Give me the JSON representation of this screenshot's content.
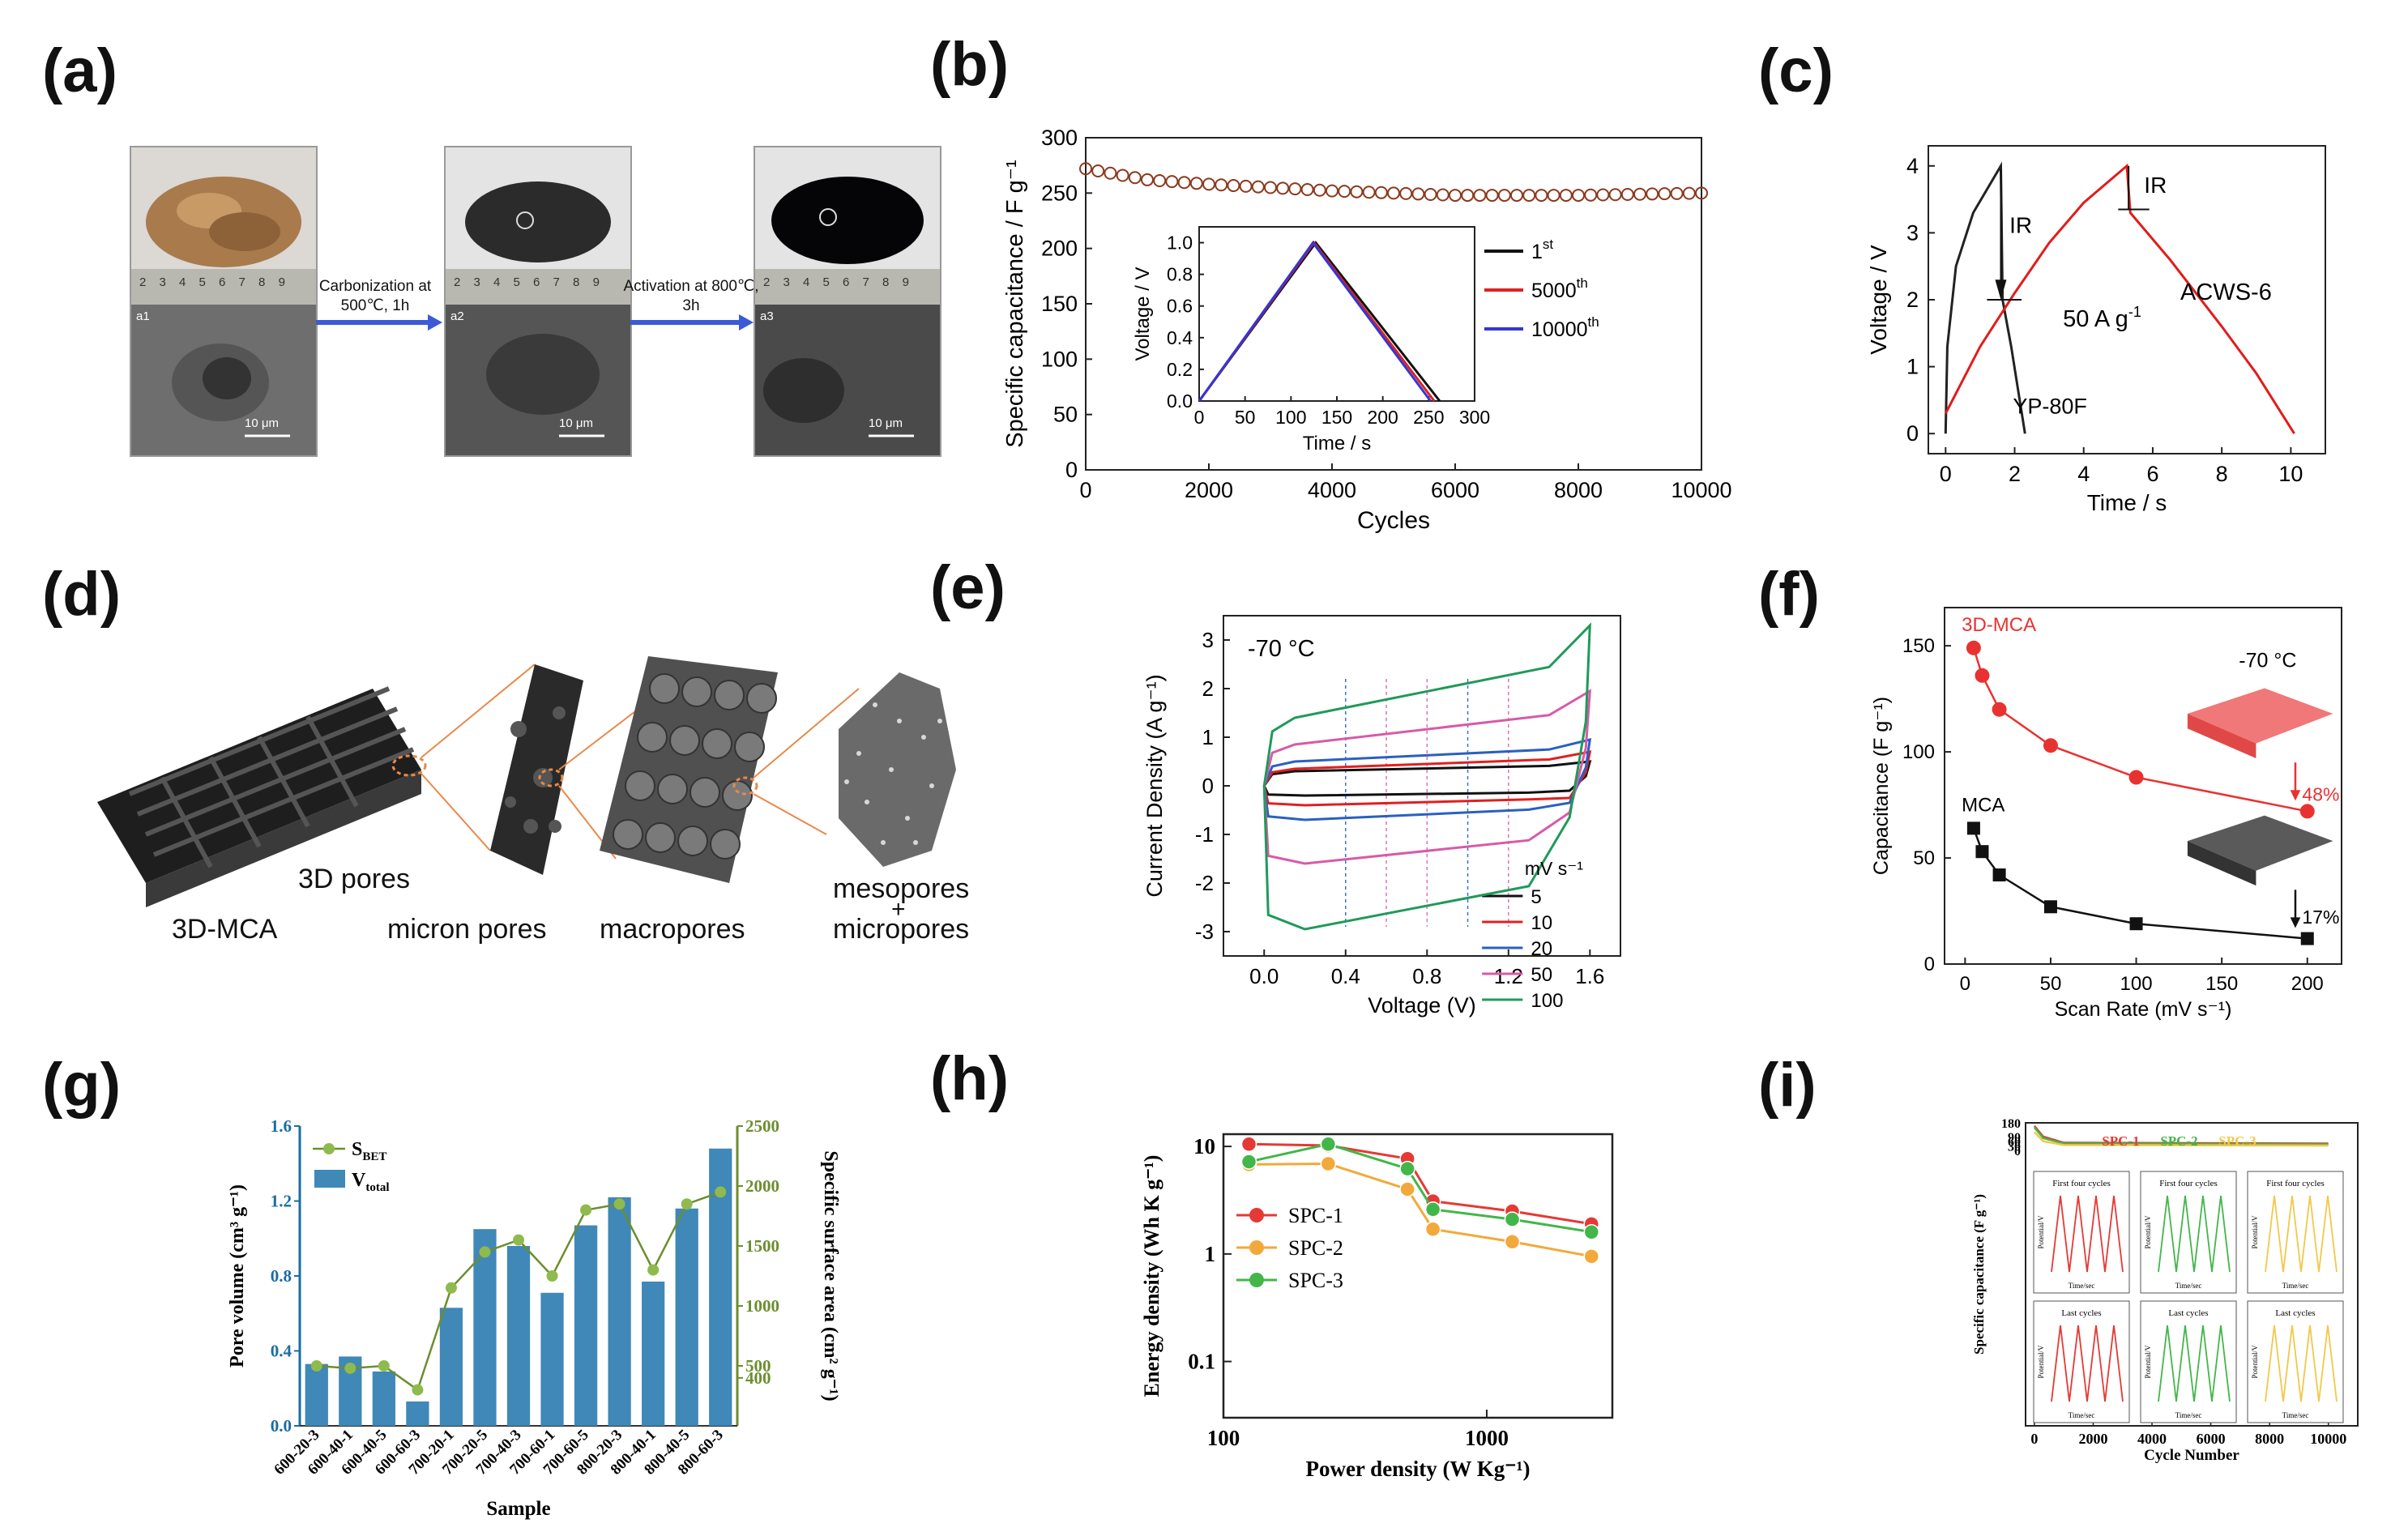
{
  "panels": {
    "a": "(a)",
    "b": "(b)",
    "c": "(c)",
    "d": "(d)",
    "e": "(e)",
    "f": "(f)",
    "g": "(g)",
    "h": "(h)",
    "i": "(i)"
  },
  "panel_a": {
    "step1": "Carbonization at 500℃, 1h",
    "step2": "Activation at 800℃, 3h",
    "scale": "10 μm",
    "sublabels": [
      "a1",
      "a2",
      "a3"
    ],
    "ruler": "2 3 4 5 6 7 8 9"
  },
  "panel_d": {
    "labels": {
      "mca": "3D-MCA",
      "pores3d": "3D pores",
      "micron": "micron pores",
      "macro": "macropores",
      "meso": "mesopores",
      "plus": "+",
      "micro": "micropores"
    },
    "colors": {
      "dark": "#2a2a2a",
      "accent": "#e8894a"
    }
  },
  "chart_data": [
    {
      "id": "b",
      "type": "scatter",
      "title": "",
      "xlabel": "Cycles",
      "ylabel": "Specific capacitance / F g⁻¹",
      "xlim": [
        0,
        10000
      ],
      "ylim": [
        0,
        300
      ],
      "xticks": [
        "0",
        "2000",
        "4000",
        "6000",
        "8000",
        "10000"
      ],
      "yticks": [
        "0",
        "50",
        "100",
        "150",
        "200",
        "250",
        "300"
      ],
      "series": [
        {
          "name": "capacitance",
          "color": "#8b3a1e",
          "x_start": 0,
          "x_end": 10000,
          "x_step": 200,
          "anchors": [
            [
              0,
              272
            ],
            [
              1000,
              262
            ],
            [
              2000,
              258
            ],
            [
              4000,
              252
            ],
            [
              6000,
              248
            ],
            [
              8000,
              248
            ],
            [
              10000,
              250
            ]
          ]
        }
      ],
      "inset": {
        "type": "line",
        "xlabel": "Time / s",
        "ylabel": "Voltage / V",
        "xlim": [
          0,
          300
        ],
        "ylim": [
          0,
          1.1
        ],
        "xticks": [
          "0",
          "50",
          "100",
          "150",
          "200",
          "250",
          "300"
        ],
        "yticks": [
          "0.0",
          "0.2",
          "0.4",
          "0.6",
          "0.8",
          "1.0"
        ],
        "series": [
          {
            "name": "1",
            "sup": "st",
            "color": "#111111",
            "points": [
              [
                0,
                0
              ],
              [
                127,
                1.0
              ],
              [
                262,
                0
              ]
            ]
          },
          {
            "name": "5000",
            "sup": "th",
            "color": "#e02020",
            "points": [
              [
                0,
                0
              ],
              [
                125,
                1.0
              ],
              [
                256,
                0
              ]
            ]
          },
          {
            "name": "10000",
            "sup": "th",
            "color": "#3535d8",
            "points": [
              [
                0,
                0
              ],
              [
                124,
                1.0
              ],
              [
                252,
                0
              ]
            ]
          }
        ]
      }
    },
    {
      "id": "c",
      "type": "line",
      "xlabel": "Time / s",
      "ylabel": "Voltage / V",
      "xlim": [
        -0.5,
        11
      ],
      "ylim": [
        -0.3,
        4.3
      ],
      "xticks": [
        "0",
        "2",
        "4",
        "6",
        "8",
        "10"
      ],
      "yticks": [
        "0",
        "1",
        "2",
        "3",
        "4"
      ],
      "annotations": {
        "ir1": "IR",
        "ir2": "IR",
        "rate": "50 A g",
        "rate_sup": "-1",
        "acws": "ACWS-6",
        "yp": "YP-80F"
      },
      "series": [
        {
          "name": "YP-80F",
          "color": "#222222",
          "points": [
            [
              0,
              0
            ],
            [
              0.05,
              1.3
            ],
            [
              0.3,
              2.5
            ],
            [
              0.8,
              3.3
            ],
            [
              1.6,
              4.0
            ],
            [
              1.65,
              2.0
            ],
            [
              1.9,
              1.3
            ],
            [
              2.3,
              0
            ]
          ]
        },
        {
          "name": "ACWS-6",
          "color": "#e31b1b",
          "points": [
            [
              0,
              0.3
            ],
            [
              1,
              1.3
            ],
            [
              2,
              2.1
            ],
            [
              3,
              2.85
            ],
            [
              4,
              3.45
            ],
            [
              5.25,
              4.0
            ],
            [
              5.35,
              3.3
            ],
            [
              6.5,
              2.6
            ],
            [
              8,
              1.6
            ],
            [
              9,
              0.9
            ],
            [
              10.1,
              0
            ]
          ]
        }
      ]
    },
    {
      "id": "e",
      "type": "line",
      "title": "-70 °C",
      "xlabel": "Voltage (V)",
      "ylabel": "Current Density (A g⁻¹)",
      "xlim": [
        -0.2,
        1.75
      ],
      "ylim": [
        -3.5,
        3.5
      ],
      "xticks": [
        "0.0",
        "0.4",
        "0.8",
        "1.2",
        "1.6"
      ],
      "yticks": [
        "-3",
        "-2",
        "-1",
        "0",
        "1",
        "2",
        "3"
      ],
      "legend_title": "mV s⁻¹",
      "series": [
        {
          "name": "5",
          "color": "#111111",
          "top": 0.3,
          "bot": -0.2,
          "end_top": 0.5,
          "end_bot": -0.1
        },
        {
          "name": "10",
          "color": "#e02020",
          "top": 0.35,
          "bot": -0.4,
          "end_top": 0.7,
          "end_bot": -0.25
        },
        {
          "name": "20",
          "color": "#2a60c0",
          "top": 0.5,
          "bot": -0.7,
          "end_top": 0.95,
          "end_bot": -0.35
        },
        {
          "name": "50",
          "color": "#d85aa8",
          "top": 0.85,
          "bot": -1.6,
          "end_top": 1.95,
          "end_bot": -0.55
        },
        {
          "name": "100",
          "color": "#1f9a5a",
          "top": 1.4,
          "bot": -2.95,
          "end_top": 3.3,
          "end_bot": -0.65
        }
      ]
    },
    {
      "id": "f",
      "type": "line",
      "title": "-70 °C",
      "xlabel": "Scan Rate (mV s⁻¹)",
      "ylabel": "Capacitance (F g⁻¹)",
      "xlim": [
        -12,
        220
      ],
      "ylim": [
        0,
        168
      ],
      "xticks": [
        "0",
        "50",
        "100",
        "150",
        "200"
      ],
      "yticks": [
        "0",
        "50",
        "100",
        "150"
      ],
      "annotations": {
        "mca3d": "3D-MCA",
        "mca": "MCA",
        "pct1": "48%",
        "pct2": "17%"
      },
      "series": [
        {
          "name": "3D-MCA",
          "color": "#e83232",
          "x": [
            5,
            10,
            20,
            50,
            100,
            200
          ],
          "values": [
            149,
            136,
            120,
            103,
            88,
            72
          ]
        },
        {
          "name": "MCA",
          "color": "#111111",
          "x": [
            5,
            10,
            20,
            50,
            100,
            200
          ],
          "values": [
            64,
            53,
            42,
            27,
            19,
            12
          ]
        }
      ]
    },
    {
      "id": "g",
      "type": "bar",
      "xlabel": "Sample",
      "ylabel": "Pore volume (cm³ g⁻¹)",
      "y2label": "Specific surface area (cm² g⁻¹)",
      "ylim": [
        0,
        1.6
      ],
      "y2lim": [
        0,
        2500
      ],
      "yticks": [
        "0.0",
        "0.4",
        "0.8",
        "1.2",
        "1.6"
      ],
      "y2ticks": [
        "400",
        "500",
        "1000",
        "1500",
        "2000",
        "2500"
      ],
      "legend": {
        "sbet": "S",
        "sbet_sub": "BET",
        "vtot": "V",
        "vtot_sub": "total"
      },
      "categories": [
        "600-20-3",
        "600-40-1",
        "600-40-5",
        "600-60-3",
        "700-20-1",
        "700-20-5",
        "700-40-3",
        "700-60-1",
        "700-60-5",
        "800-20-3",
        "800-40-1",
        "800-40-5",
        "800-60-3"
      ],
      "series": [
        {
          "name": "V_total",
          "color": "#3f88b8",
          "values": [
            0.33,
            0.37,
            0.29,
            0.13,
            0.63,
            1.05,
            0.96,
            0.71,
            1.07,
            1.22,
            0.77,
            1.16,
            1.48
          ]
        },
        {
          "name": "S_BET",
          "color": "#8fba4e",
          "values": [
            500,
            480,
            500,
            300,
            1150,
            1450,
            1550,
            1250,
            1800,
            1850,
            1300,
            1850,
            1950
          ]
        }
      ]
    },
    {
      "id": "h",
      "type": "line",
      "xlabel": "Power density (W Kg⁻¹)",
      "ylabel": "Energy density (Wh K g⁻¹)",
      "xscale": "log",
      "yscale": "log",
      "xlim": [
        100,
        3000
      ],
      "ylim": [
        0.03,
        13
      ],
      "xticks": [
        "100",
        "1000"
      ],
      "yticks": [
        "0.1",
        "1",
        "10"
      ],
      "series": [
        {
          "name": "SPC-1",
          "color": "#e53935",
          "x": [
            125,
            250,
            500,
            625,
            1250,
            2500
          ],
          "values": [
            10.5,
            10.2,
            7.7,
            3.1,
            2.5,
            1.9
          ]
        },
        {
          "name": "SPC-2",
          "color": "#f2a93b",
          "x": [
            125,
            250,
            500,
            625,
            1250,
            2500
          ],
          "values": [
            6.8,
            6.9,
            4.0,
            1.7,
            1.3,
            0.95
          ]
        },
        {
          "name": "SPC-3",
          "color": "#43b649",
          "x": [
            125,
            250,
            500,
            625,
            1250,
            2500
          ],
          "values": [
            7.2,
            10.5,
            6.2,
            2.6,
            2.1,
            1.6
          ]
        }
      ]
    },
    {
      "id": "i",
      "type": "line",
      "xlabel": "Cycle Number",
      "ylabel": "Specific capacitance (F g⁻¹)",
      "xlim": [
        -300,
        11000
      ],
      "ylim": [
        0,
        180
      ],
      "xticks": [
        "0",
        "2000",
        "4000",
        "6000",
        "8000",
        "10000"
      ],
      "yticks": [
        "0",
        "30",
        "60",
        "90",
        "180"
      ],
      "legend": [
        "SPC-1",
        "SPC-2",
        "SPC-3"
      ],
      "inset_titles": {
        "first": "First four cycles",
        "last": "Last cycles"
      },
      "inset_axes": {
        "y": "Potential/V",
        "x": "Time/sec"
      },
      "series": [
        {
          "name": "SPC-1",
          "color": "#e53935",
          "values": [
            [
              0,
              160
            ],
            [
              300,
              90
            ],
            [
              1000,
              50
            ],
            [
              10000,
              45
            ]
          ]
        },
        {
          "name": "SPC-2",
          "color": "#43b649",
          "values": [
            [
              0,
              150
            ],
            [
              300,
              80
            ],
            [
              1000,
              45
            ],
            [
              10000,
              40
            ]
          ]
        },
        {
          "name": "SPC-3",
          "color": "#f2c84b",
          "values": [
            [
              0,
              120
            ],
            [
              300,
              60
            ],
            [
              1000,
              35
            ],
            [
              10000,
              32
            ]
          ]
        }
      ]
    }
  ]
}
